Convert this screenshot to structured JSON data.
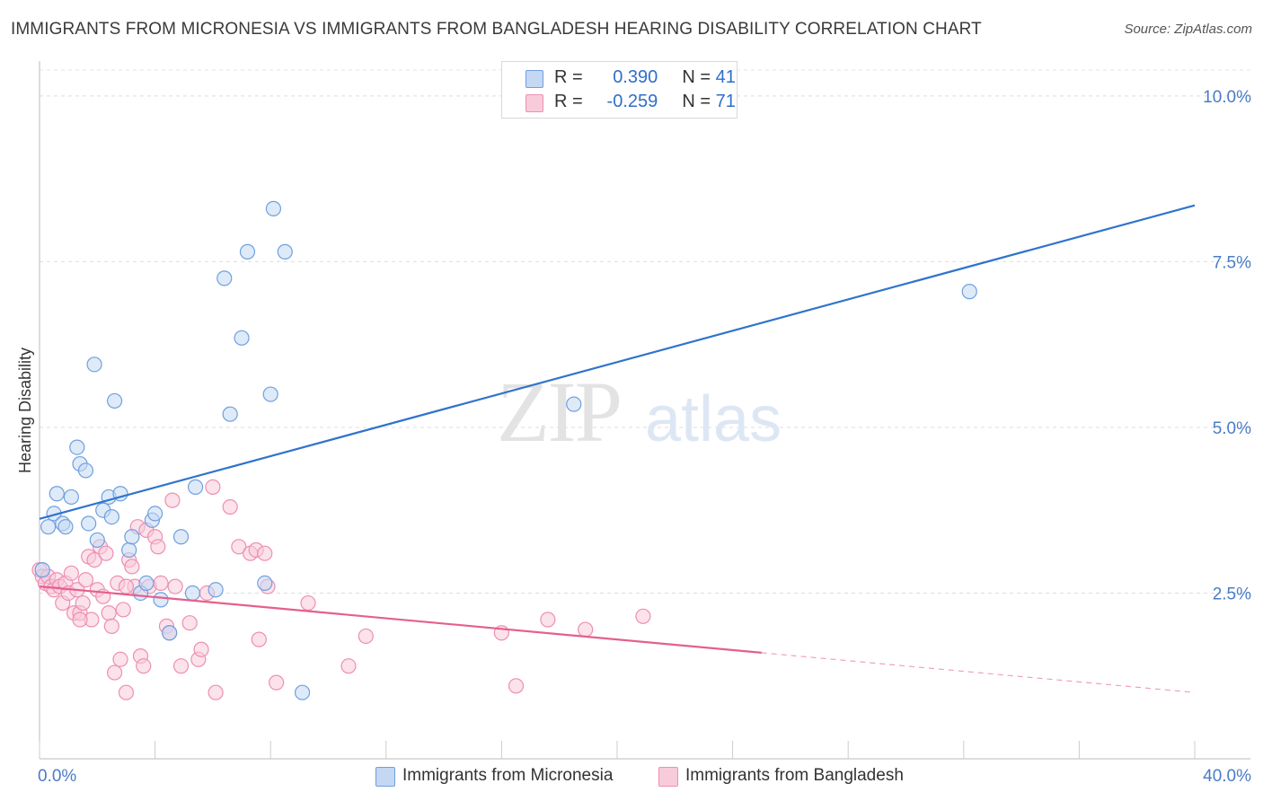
{
  "chart_data": {
    "type": "scatter",
    "title": "IMMIGRANTS FROM MICRONESIA VS IMMIGRANTS FROM BANGLADESH HEARING DISABILITY CORRELATION CHART",
    "source": "Source: ZipAtlas.com",
    "xlabel": "",
    "ylabel": "Hearing Disability",
    "xlim": [
      0,
      40
    ],
    "ylim": [
      0,
      10.5
    ],
    "x_tick_labels": [
      {
        "value": 0,
        "label": "0.0%"
      },
      {
        "value": 40,
        "label": "40.0%"
      }
    ],
    "y_tick_labels": [
      {
        "value": 2.5,
        "label": "2.5%"
      },
      {
        "value": 5.0,
        "label": "5.0%"
      },
      {
        "value": 7.5,
        "label": "7.5%"
      },
      {
        "value": 10.0,
        "label": "10.0%"
      }
    ],
    "grid": "horizontal dashed",
    "legend_placement": "bottom",
    "watermark": {
      "zip": "ZIP",
      "atlas": "atlas"
    },
    "stats": [
      {
        "r_label": "R =",
        "r": "0.390",
        "n_label": "N =",
        "n": "41"
      },
      {
        "r_label": "R =",
        "r": "-0.259",
        "n_label": "N =",
        "n": "71"
      }
    ],
    "series": [
      {
        "name": "Immigrants from Micronesia",
        "color": "#6f9fe0",
        "fill": "#c4d8f3",
        "line_color": "#2f74cc",
        "trend": {
          "x0": 0,
          "y0": 3.62,
          "x1": 40,
          "y1": 8.35
        },
        "points": [
          [
            0.3,
            3.5
          ],
          [
            0.5,
            3.7
          ],
          [
            0.6,
            4.0
          ],
          [
            0.8,
            3.55
          ],
          [
            0.9,
            3.5
          ],
          [
            1.1,
            3.95
          ],
          [
            1.3,
            4.7
          ],
          [
            1.4,
            4.45
          ],
          [
            1.6,
            4.35
          ],
          [
            1.7,
            3.55
          ],
          [
            1.9,
            5.95
          ],
          [
            2.0,
            3.3
          ],
          [
            2.2,
            3.75
          ],
          [
            2.4,
            3.95
          ],
          [
            2.5,
            3.65
          ],
          [
            2.6,
            5.4
          ],
          [
            2.8,
            4.0
          ],
          [
            3.1,
            3.15
          ],
          [
            3.2,
            3.35
          ],
          [
            3.5,
            2.5
          ],
          [
            3.7,
            2.65
          ],
          [
            3.9,
            3.6
          ],
          [
            4.0,
            3.7
          ],
          [
            4.2,
            2.4
          ],
          [
            4.5,
            1.9
          ],
          [
            4.9,
            3.35
          ],
          [
            5.3,
            2.5
          ],
          [
            5.4,
            4.1
          ],
          [
            6.1,
            2.55
          ],
          [
            6.4,
            7.25
          ],
          [
            6.6,
            5.2
          ],
          [
            7.0,
            6.35
          ],
          [
            7.2,
            7.65
          ],
          [
            7.8,
            2.65
          ],
          [
            8.0,
            5.5
          ],
          [
            8.1,
            8.3
          ],
          [
            8.5,
            7.65
          ],
          [
            9.1,
            1.0
          ],
          [
            18.5,
            5.35
          ],
          [
            32.2,
            7.05
          ],
          [
            0.1,
            2.85
          ]
        ]
      },
      {
        "name": "Immigrants from Bangladesh",
        "color": "#ee8fb1",
        "fill": "#f8cbdb",
        "line_color": "#e4608c",
        "trend": {
          "x0": 0,
          "y0": 2.6,
          "x1": 25,
          "y1": 1.6
        },
        "trend_extension": {
          "x0": 25,
          "y0": 1.6,
          "x1": 40,
          "y1": 1.0
        },
        "points": [
          [
            0.0,
            2.85
          ],
          [
            0.1,
            2.75
          ],
          [
            0.2,
            2.65
          ],
          [
            0.3,
            2.75
          ],
          [
            0.4,
            2.6
          ],
          [
            0.5,
            2.55
          ],
          [
            0.6,
            2.7
          ],
          [
            0.7,
            2.6
          ],
          [
            0.8,
            2.35
          ],
          [
            0.9,
            2.65
          ],
          [
            1.0,
            2.5
          ],
          [
            1.1,
            2.8
          ],
          [
            1.2,
            2.2
          ],
          [
            1.3,
            2.55
          ],
          [
            1.4,
            2.2
          ],
          [
            1.5,
            2.35
          ],
          [
            1.6,
            2.7
          ],
          [
            1.7,
            3.05
          ],
          [
            1.8,
            2.1
          ],
          [
            1.9,
            3.0
          ],
          [
            2.0,
            2.55
          ],
          [
            2.1,
            3.2
          ],
          [
            2.2,
            2.45
          ],
          [
            2.3,
            3.1
          ],
          [
            2.4,
            2.2
          ],
          [
            2.5,
            2.0
          ],
          [
            2.6,
            1.3
          ],
          [
            2.7,
            2.65
          ],
          [
            2.8,
            1.5
          ],
          [
            2.9,
            2.25
          ],
          [
            3.0,
            1.0
          ],
          [
            3.1,
            3.0
          ],
          [
            3.2,
            2.9
          ],
          [
            3.3,
            2.6
          ],
          [
            3.4,
            3.5
          ],
          [
            3.5,
            1.55
          ],
          [
            3.6,
            1.4
          ],
          [
            3.7,
            3.45
          ],
          [
            3.8,
            2.6
          ],
          [
            4.0,
            3.35
          ],
          [
            4.1,
            3.2
          ],
          [
            4.2,
            2.65
          ],
          [
            4.4,
            2.0
          ],
          [
            4.5,
            1.9
          ],
          [
            4.6,
            3.9
          ],
          [
            4.7,
            2.6
          ],
          [
            4.9,
            1.4
          ],
          [
            5.2,
            2.05
          ],
          [
            5.5,
            1.5
          ],
          [
            5.6,
            1.65
          ],
          [
            5.8,
            2.5
          ],
          [
            6.0,
            4.1
          ],
          [
            6.1,
            1.0
          ],
          [
            6.6,
            3.8
          ],
          [
            6.9,
            3.2
          ],
          [
            7.3,
            3.1
          ],
          [
            7.5,
            3.15
          ],
          [
            7.6,
            1.8
          ],
          [
            7.8,
            3.1
          ],
          [
            7.9,
            2.6
          ],
          [
            8.2,
            1.15
          ],
          [
            9.3,
            2.35
          ],
          [
            10.7,
            1.4
          ],
          [
            11.3,
            1.85
          ],
          [
            16.0,
            1.9
          ],
          [
            16.5,
            1.1
          ],
          [
            17.6,
            2.1
          ],
          [
            18.9,
            1.95
          ],
          [
            20.9,
            2.15
          ],
          [
            3.0,
            2.6
          ],
          [
            1.4,
            2.1
          ]
        ]
      }
    ]
  }
}
